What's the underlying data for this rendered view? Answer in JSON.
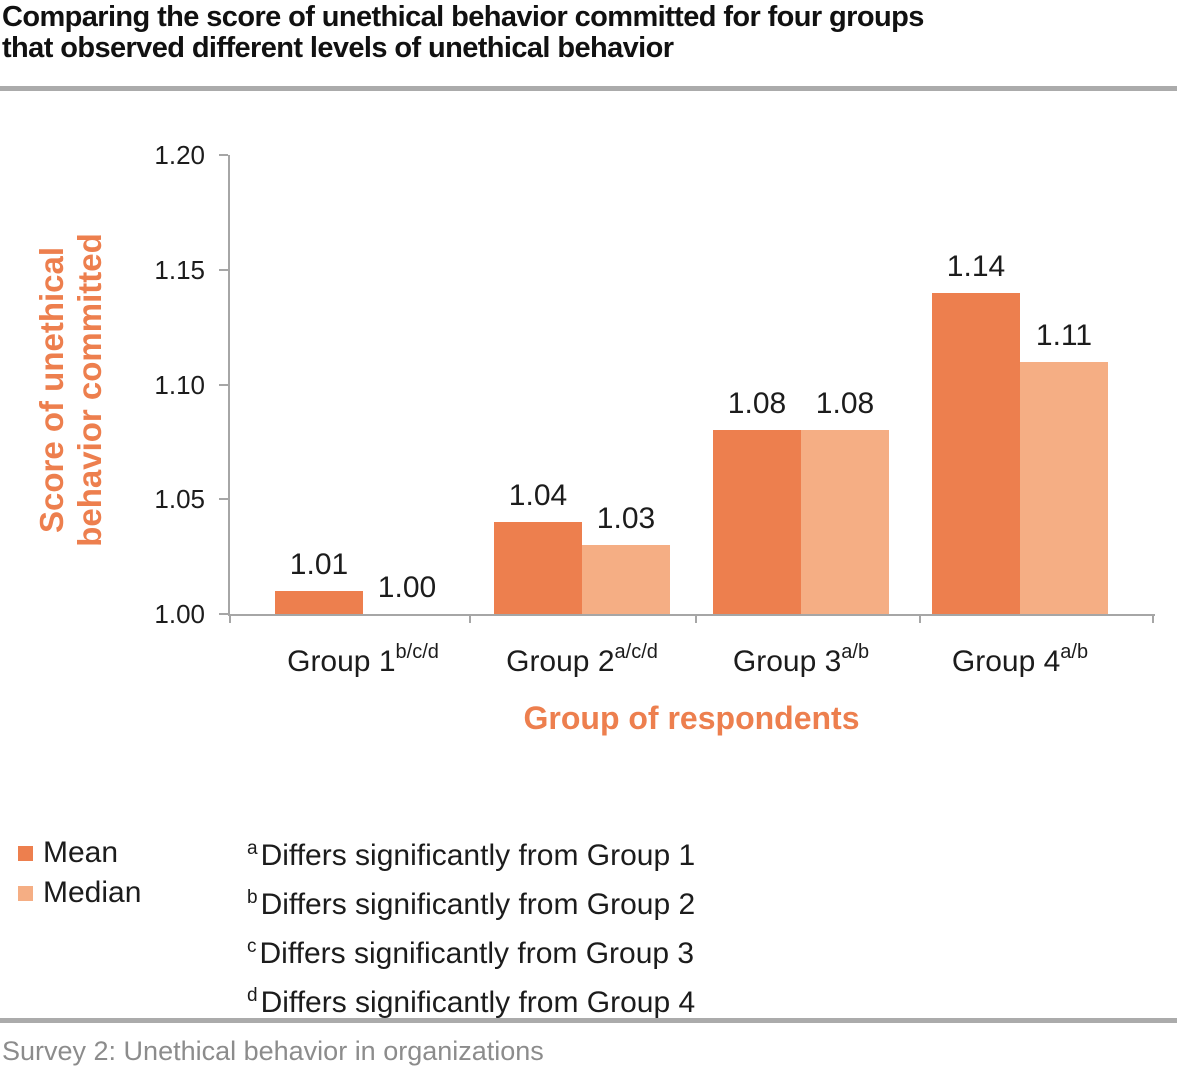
{
  "title_lines": [
    "Comparing the score of unethical behavior committed for four groups",
    "that observed different levels of unethical behavior"
  ],
  "chart_data": {
    "type": "bar",
    "title": "Comparing the score of unethical behavior committed for four groups that observed different levels of unethical behavior",
    "categories": [
      {
        "label": "Group 1",
        "superscript": "b/c/d"
      },
      {
        "label": "Group 2",
        "superscript": "a/c/d"
      },
      {
        "label": "Group 3",
        "superscript": "a/b"
      },
      {
        "label": "Group 4",
        "superscript": "a/b"
      }
    ],
    "series": [
      {
        "name": "Mean",
        "color": "#ED7F4E",
        "values": [
          1.01,
          1.04,
          1.08,
          1.14
        ]
      },
      {
        "name": "Median",
        "color": "#F5AE84",
        "values": [
          1.0,
          1.03,
          1.08,
          1.11
        ]
      }
    ],
    "xlabel": "Group of respondents",
    "ylabel": "Score of unethical behavior committed",
    "ylabel_lines": [
      "Score of unethical",
      "behavior committed"
    ],
    "ylim": [
      1.0,
      1.2
    ],
    "yticks": [
      1.2,
      1.15,
      1.1,
      1.05,
      1.0
    ],
    "grid": false,
    "legend_position": "bottom-left",
    "bar_value_labels": true
  },
  "footnotes": [
    {
      "marker": "a",
      "text": "Differs significantly from Group 1"
    },
    {
      "marker": "b",
      "text": "Differs significantly from Group 2"
    },
    {
      "marker": "c",
      "text": "Differs significantly from Group 3"
    },
    {
      "marker": "d",
      "text": "Differs significantly from Group 4"
    }
  ],
  "source": "Survey 2: Unethical behavior in organizations",
  "colors": {
    "mean_orange": "#ED7F4E",
    "median_orange": "#F5AE84",
    "axis_gray": "#A6A6A6",
    "divider_gray": "#ABABAB",
    "source_gray": "#8C8C8C",
    "text_black": "#1C1C1C"
  }
}
